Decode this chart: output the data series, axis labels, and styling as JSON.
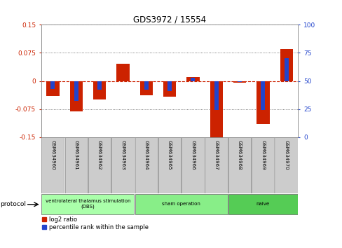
{
  "title": "GDS3972 / 15554",
  "samples": [
    "GSM634960",
    "GSM634961",
    "GSM634962",
    "GSM634963",
    "GSM634964",
    "GSM634965",
    "GSM634966",
    "GSM634967",
    "GSM634968",
    "GSM634969",
    "GSM634970"
  ],
  "log2_ratio": [
    -0.04,
    -0.082,
    -0.05,
    0.045,
    -0.038,
    -0.043,
    0.01,
    -0.155,
    -0.005,
    -0.115,
    0.085
  ],
  "percentile_rank": [
    43,
    32,
    42,
    50,
    42,
    41,
    53,
    24,
    49,
    24,
    70
  ],
  "ylim": [
    -0.15,
    0.15
  ],
  "yticks_left": [
    -0.15,
    -0.075,
    0,
    0.075,
    0.15
  ],
  "yticks_right": [
    0,
    25,
    50,
    75,
    100
  ],
  "bar_color_red": "#cc2200",
  "bar_color_blue": "#2244cc",
  "bg_color": "#ffffff",
  "sample_box_color": "#cccccc",
  "label_color_left": "#cc2200",
  "label_color_right": "#2244cc",
  "protocol_label": "protocol",
  "legend_red": "log2 ratio",
  "legend_blue": "percentile rank within the sample",
  "bar_width": 0.55,
  "percentile_bar_width": 0.18,
  "group_spans": [
    [
      0,
      3,
      "ventrolateral thalamus stimulation\n(DBS)",
      "#aaffaa"
    ],
    [
      4,
      7,
      "sham operation",
      "#88ee88"
    ],
    [
      8,
      10,
      "naive",
      "#55cc55"
    ]
  ]
}
